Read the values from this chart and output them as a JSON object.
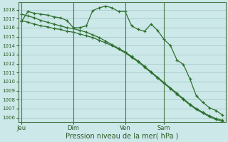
{
  "xlabel": "Pression niveau de la mer( hPa )",
  "background_color": "#cce8e8",
  "grid_color": "#a8cccc",
  "line_color": "#2d6e2d",
  "vline_color": "#4a7a4a",
  "ylim": [
    1005.5,
    1018.8
  ],
  "yticks": [
    1006,
    1007,
    1008,
    1009,
    1010,
    1011,
    1012,
    1013,
    1014,
    1015,
    1016,
    1017,
    1018
  ],
  "xtick_labels": [
    "Jeu",
    "Dim",
    "Ven",
    "Sam"
  ],
  "xtick_positions": [
    0,
    8,
    16,
    22
  ],
  "vline_positions": [
    0,
    8,
    16,
    22
  ],
  "n_points": 32,
  "series1": [
    1016.7,
    1017.8,
    1017.6,
    1017.5,
    1017.4,
    1017.2,
    1017.1,
    1016.8,
    1016.0,
    1016.0,
    1016.2,
    1017.9,
    1018.2,
    1018.4,
    1018.2,
    1017.8,
    1017.8,
    1016.2,
    1015.8,
    1015.6,
    1016.4,
    1015.7,
    1014.7,
    1014.0,
    1012.4,
    1011.9,
    1010.3,
    1008.4,
    1007.7,
    1007.1,
    1006.8,
    1006.3
  ],
  "series2": [
    1017.5,
    1017.3,
    1017.1,
    1016.8,
    1016.6,
    1016.4,
    1016.2,
    1016.0,
    1015.9,
    1015.7,
    1015.5,
    1015.2,
    1014.9,
    1014.5,
    1014.1,
    1013.7,
    1013.3,
    1012.8,
    1012.3,
    1011.7,
    1011.1,
    1010.5,
    1009.9,
    1009.3,
    1008.7,
    1008.1,
    1007.5,
    1007.0,
    1006.6,
    1006.2,
    1005.9,
    1005.7
  ],
  "series3": [
    1016.8,
    1016.6,
    1016.4,
    1016.2,
    1016.1,
    1015.9,
    1015.8,
    1015.6,
    1015.5,
    1015.3,
    1015.1,
    1014.9,
    1014.6,
    1014.3,
    1014.0,
    1013.6,
    1013.2,
    1012.7,
    1012.2,
    1011.6,
    1011.0,
    1010.4,
    1009.8,
    1009.2,
    1008.6,
    1008.0,
    1007.4,
    1006.9,
    1006.5,
    1006.1,
    1005.8,
    1005.6
  ]
}
